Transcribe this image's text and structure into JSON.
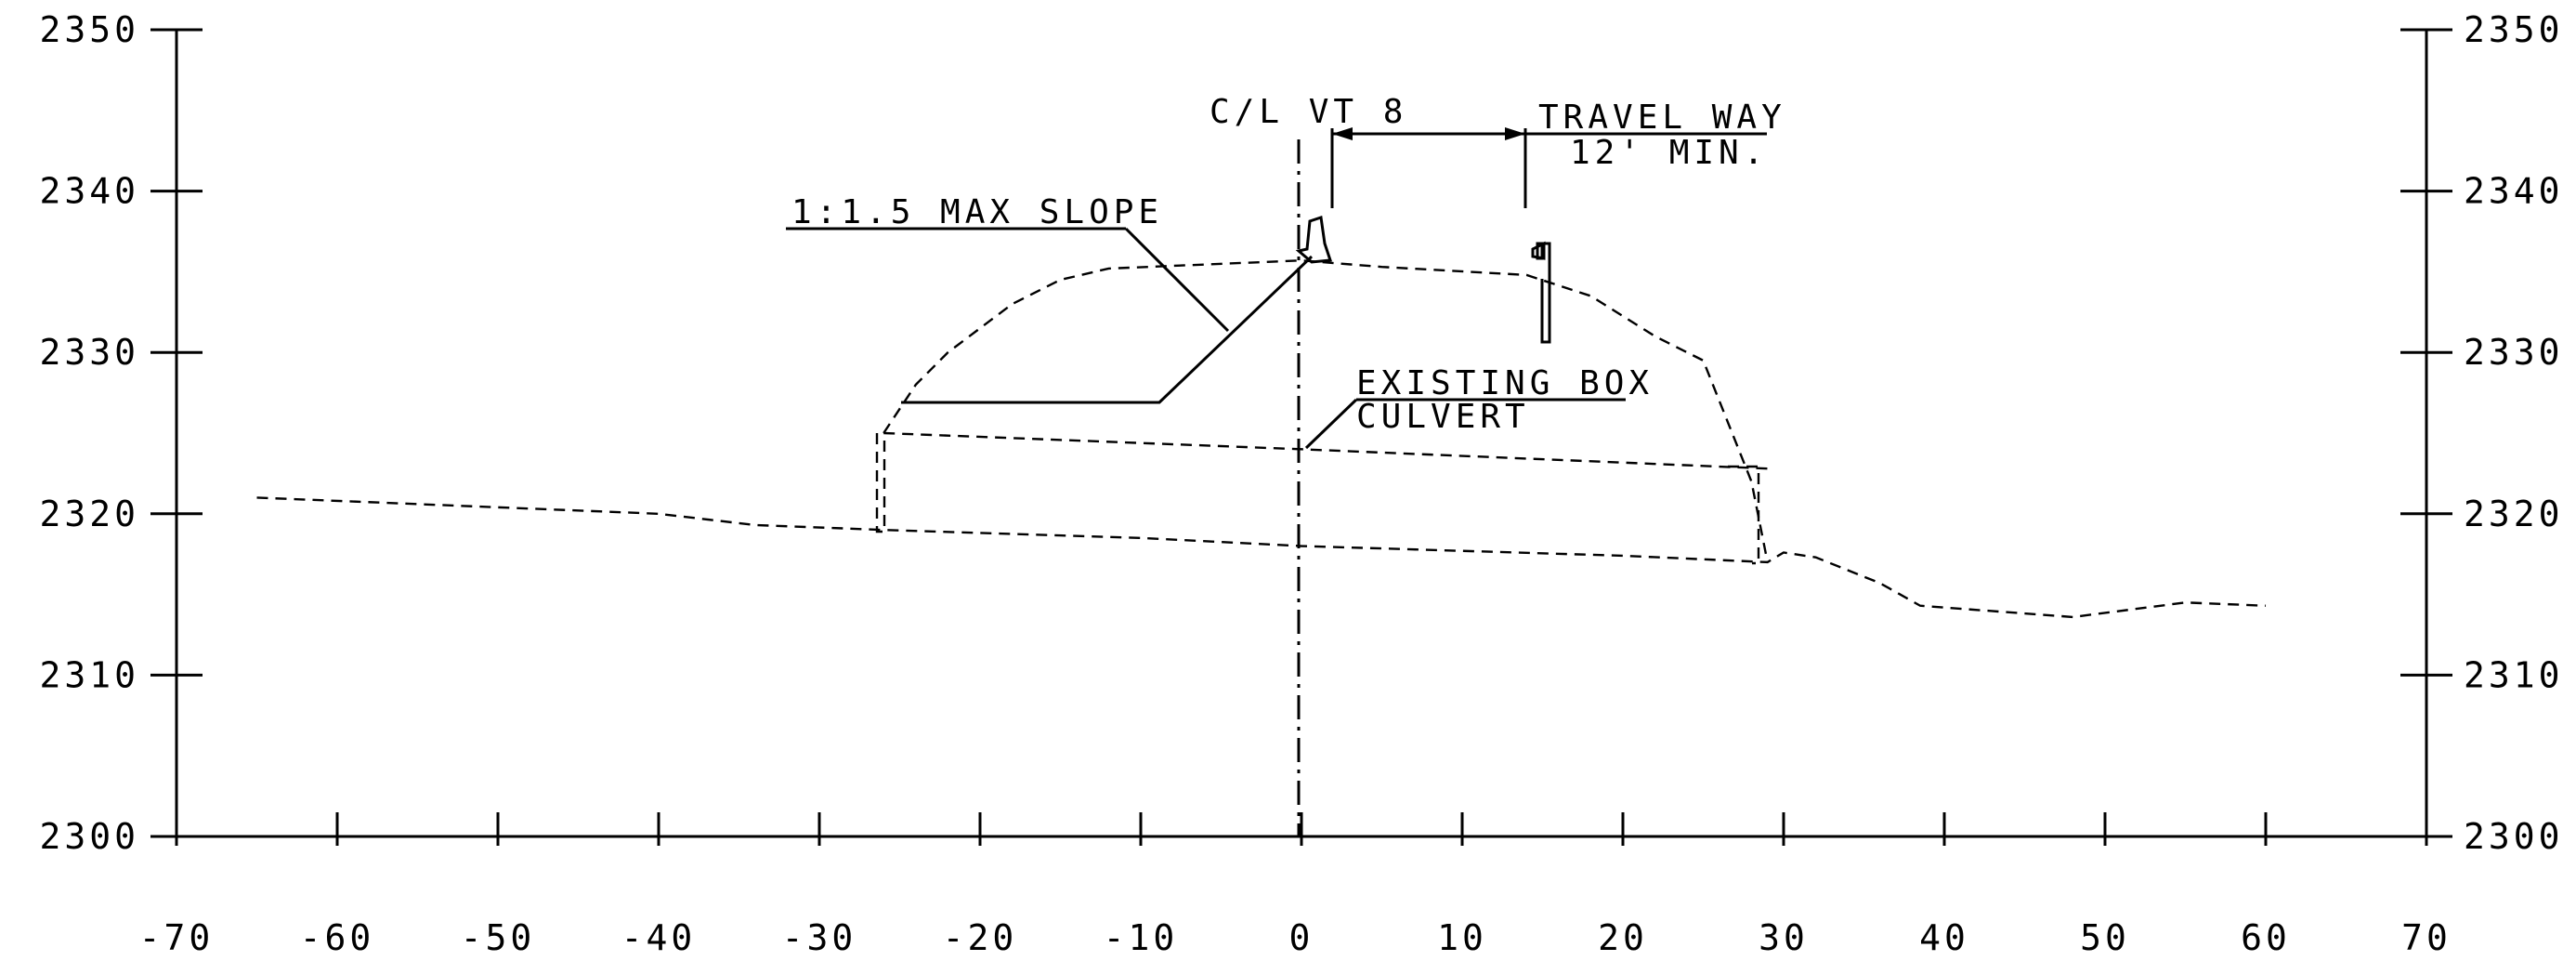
{
  "axes": {
    "x_ticks": [
      "-70",
      "-60",
      "-50",
      "-40",
      "-30",
      "-20",
      "-10",
      "0",
      "10",
      "20",
      "30",
      "40",
      "50",
      "60",
      "70"
    ],
    "y_ticks": [
      "2350",
      "2340",
      "2330",
      "2320",
      "2310",
      "2300"
    ]
  },
  "annotations": {
    "centerline": "C/L VT 8",
    "travel_way": "TRAVEL WAY",
    "travel_way_min": "12' MIN.",
    "max_slope": "1:1.5 MAX SLOPE",
    "culvert_line1": "EXISTING BOX",
    "culvert_line2": "CULVERT"
  },
  "chart_data": {
    "type": "line",
    "xlim": [
      -70,
      70
    ],
    "ylim": [
      2300,
      2350
    ],
    "series": [
      {
        "values": [
          [
            -65,
            2321
          ],
          [
            -50,
            2320.4
          ],
          [
            -40,
            2320
          ],
          [
            -34,
            2319.3
          ],
          [
            -26,
            2319
          ],
          [
            -10,
            2318.5
          ],
          [
            0,
            2318
          ],
          [
            10,
            2317.7
          ],
          [
            20,
            2317.4
          ],
          [
            29,
            2317
          ],
          [
            30,
            2317.6
          ],
          [
            32,
            2317.3
          ],
          [
            36,
            2315.7
          ],
          [
            38.5,
            2314.3
          ],
          [
            48,
            2313.6
          ],
          [
            55,
            2314.5
          ],
          [
            60,
            2314.3
          ]
        ]
      },
      {
        "values": [
          [
            -26,
            2325
          ],
          [
            -24,
            2328
          ],
          [
            -22,
            2330
          ],
          [
            -18,
            2333
          ],
          [
            -15,
            2334.5
          ],
          [
            -12,
            2335.2
          ],
          [
            0,
            2335.7
          ],
          [
            5,
            2335.3
          ],
          [
            14,
            2334.8
          ],
          [
            18,
            2333.5
          ],
          [
            22,
            2331
          ],
          [
            25,
            2329.5
          ],
          [
            28,
            2322
          ],
          [
            29,
            2317
          ]
        ]
      },
      {
        "values": [
          [
            -26,
            2325
          ],
          [
            0,
            2324
          ],
          [
            29,
            2322.8
          ]
        ]
      }
    ]
  }
}
